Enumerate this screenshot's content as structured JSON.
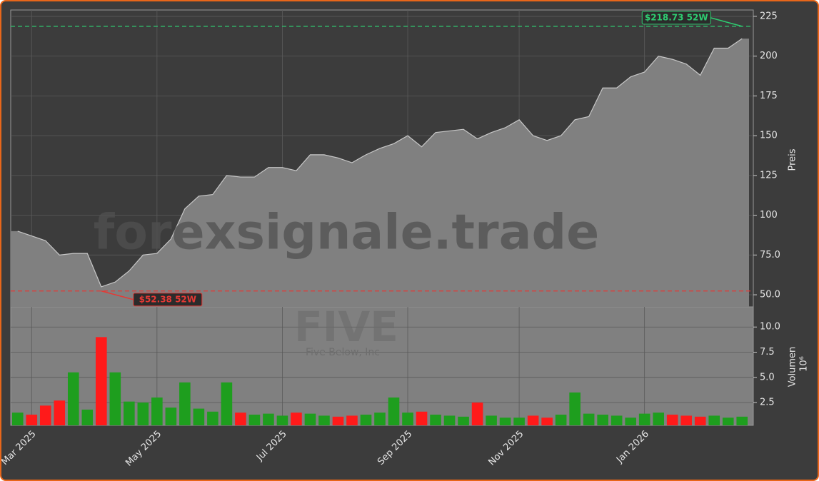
{
  "watermark": "forexsignale.trade",
  "symbol": "FIVE",
  "company": "Five Below, Inc",
  "chart_data": [
    {
      "type": "area",
      "y_label": "Preis",
      "color": "#808080",
      "line_color": "#c8c8c8",
      "grid": true,
      "ylim": [
        42.4,
        229
      ],
      "yticks": [
        {
          "value": 50,
          "label": "50.0"
        },
        {
          "value": 75,
          "label": "75.0"
        },
        100,
        125,
        150,
        175,
        200,
        225
      ],
      "values": [
        90,
        87,
        84,
        75,
        76,
        76,
        55,
        58,
        65,
        75,
        76,
        85,
        104,
        112,
        113,
        125,
        124,
        124,
        130,
        130,
        128,
        138,
        138,
        136,
        133,
        138,
        142,
        145,
        150,
        143,
        152,
        153,
        154,
        148,
        152,
        155,
        160,
        150,
        147,
        150,
        160,
        162,
        180,
        180,
        187,
        190,
        200,
        198,
        195,
        188,
        205,
        205,
        211
      ],
      "annotations": [
        {
          "value": 218.73,
          "label": "$218.73 52W",
          "color": "#2ecc71",
          "index": 52
        },
        {
          "value": 52.38,
          "label": "$52.38 52W",
          "color": "#e53935",
          "index": 6
        }
      ]
    },
    {
      "type": "bar",
      "y_label": "Volumen",
      "y_unit": "10⁶",
      "up_color": "#1e9e1e",
      "down_color": "#ff1a1a",
      "grid": true,
      "ylim": [
        0.24,
        12
      ],
      "yticks": [
        2.5,
        {
          "value": 5,
          "label": "5.0"
        },
        7.5,
        {
          "value": 10,
          "label": "10.0"
        }
      ],
      "categories": [
        null,
        "Mar 2025",
        null,
        null,
        null,
        null,
        null,
        null,
        null,
        null,
        "May 2025",
        null,
        null,
        null,
        null,
        null,
        null,
        null,
        null,
        "Jul 2025",
        null,
        null,
        null,
        null,
        null,
        null,
        null,
        null,
        "Sep 2025",
        null,
        null,
        null,
        null,
        null,
        null,
        null,
        "Nov 2025",
        null,
        null,
        null,
        null,
        null,
        null,
        null,
        null,
        "Jan 2026",
        null,
        null,
        null,
        null,
        null,
        null,
        null
      ],
      "values": [
        1.5,
        1.3,
        2.2,
        2.7,
        5.5,
        1.8,
        9.0,
        5.5,
        2.6,
        2.5,
        3.0,
        2.0,
        4.5,
        1.9,
        1.6,
        4.5,
        1.5,
        1.3,
        1.4,
        1.2,
        1.5,
        1.4,
        1.2,
        1.1,
        1.2,
        1.3,
        1.5,
        3.0,
        1.5,
        1.6,
        1.3,
        1.2,
        1.1,
        2.5,
        1.2,
        1.0,
        1.0,
        1.2,
        1.0,
        1.3,
        3.5,
        1.4,
        1.3,
        1.2,
        1.0,
        1.4,
        1.5,
        1.3,
        1.2,
        1.1,
        1.2,
        1.0,
        1.1
      ]
    }
  ]
}
